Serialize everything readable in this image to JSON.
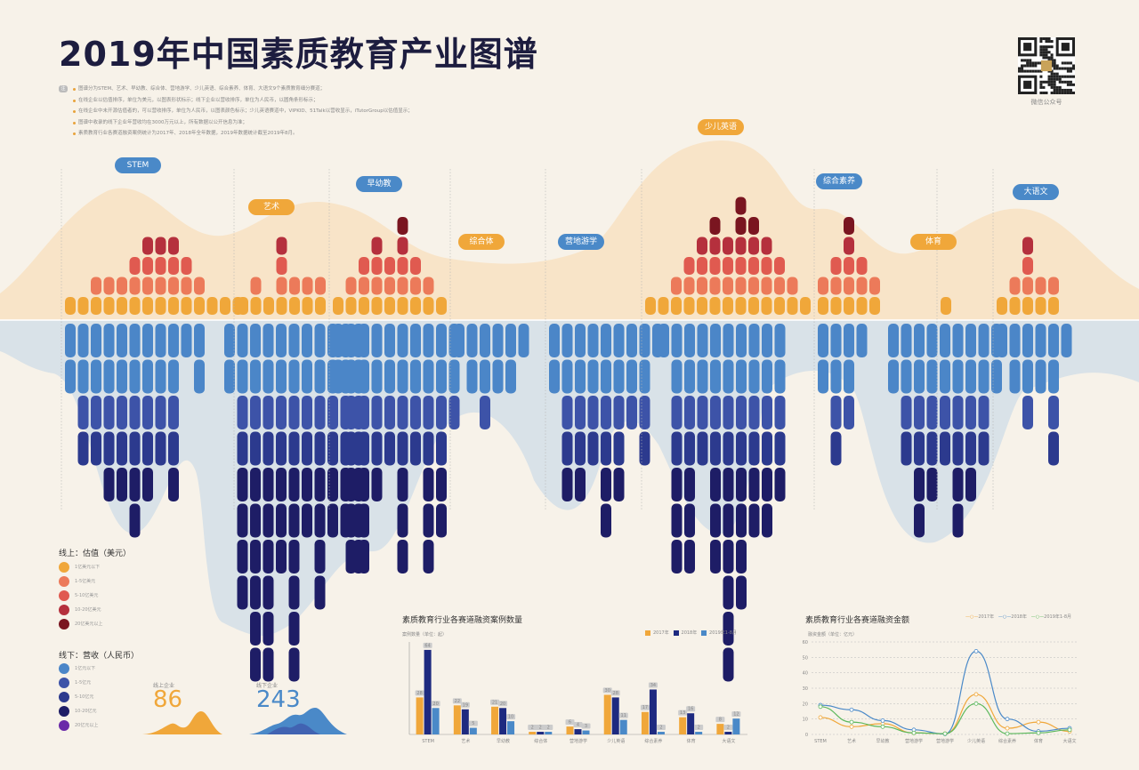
{
  "title": "2019年中国素质教育产业图谱",
  "qr_label": "微信公众号",
  "notes": {
    "badge": "注",
    "items": [
      "图谱分为STEM、艺术、早幼教、综合体、营地游学、少儿英语、综合素养、体育、大语文9个素质教育细分赛道；",
      "在线企业以估值排序，单位为美元，以图表形状标示；线下企业以营收排序，单位为人民币，以圆角条形标示；",
      "在线企业中未开源估值者的，可以营收排序，单位为人民币，以图表颜色标示；少儿英语赛道中，VIPKID、51Talk以营收显示，iTutorGroup以估值显示；",
      "图谱中收录的线下企业年营收均在3000万元以上，所有数据以公开信息为准；",
      "素质教育行业各赛道融资案例统计为2017年、2018年全年数据，2019年数据统计截至2019年8月。"
    ]
  },
  "colors": {
    "top_bg": "#f8e4c8",
    "bottom_bg": "#d9e2e8",
    "online": [
      "#f0a73a",
      "#ec7a5a",
      "#e05a50",
      "#b5303d",
      "#7a1520"
    ],
    "offline": [
      "#4b86c8",
      "#3d53a8",
      "#2c3a8e",
      "#1e1d66",
      "#6a2aa8"
    ],
    "label_bg": "#4a89c8",
    "title": "#1d1d3f",
    "online_stat": "#f0a73a",
    "offline_stat": "#4a89c8"
  },
  "categories": [
    {
      "name": "STEM",
      "label_x": 155,
      "label_y": 186,
      "online": [
        0,
        0,
        1,
        1,
        1,
        2,
        3,
        3,
        3,
        2,
        1,
        0,
        0,
        0
      ],
      "offline": [
        1,
        3,
        3,
        4,
        4,
        5,
        4,
        3,
        4,
        0,
        1
      ],
      "online_x0": 73,
      "offline_x0": 73
    },
    {
      "name": "艺术",
      "label_x": 305,
      "label_y": 233,
      "online": [
        0,
        1,
        0,
        3,
        1,
        1,
        1
      ],
      "offline": [
        1,
        7,
        9,
        9,
        6,
        9,
        5,
        7,
        5,
        5,
        6
      ],
      "online_x0": 267,
      "offline_x0": 252
    },
    {
      "name": "早幼教",
      "label_x": 426,
      "label_y": 207,
      "online": [
        0,
        1,
        2,
        3,
        2,
        4,
        2,
        1,
        0
      ],
      "offline": [
        1,
        6,
        6,
        4,
        3,
        6,
        3,
        6,
        5,
        2
      ],
      "online_x0": 374,
      "offline_x0": 374
    },
    {
      "name": "综合体",
      "label_x": 541,
      "label_y": 272,
      "online": [],
      "offline": [
        0,
        1,
        2,
        1,
        1,
        0
      ],
      "online_x0": 520,
      "offline_x0": 510
    },
    {
      "name": "营地游学",
      "label_x": 653,
      "label_y": 272,
      "online": [],
      "offline": [
        1,
        4,
        4,
        3,
        5,
        4,
        2,
        3,
        0
      ],
      "online_x0": 620,
      "offline_x0": 617
    },
    {
      "name": "少儿英语",
      "label_x": 810,
      "label_y": 143,
      "online": [
        0,
        0,
        1,
        2,
        3,
        4,
        3,
        5,
        4,
        3,
        2,
        1,
        0
      ],
      "offline": [
        0,
        6,
        6,
        3,
        6,
        9,
        7,
        5,
        5,
        4
      ],
      "online_x0": 725,
      "offline_x0": 740
    },
    {
      "name": "综合素养",
      "label_x": 943,
      "label_y": 204,
      "online": [
        1,
        2,
        4,
        2,
        1
      ],
      "offline": [
        1,
        3,
        2,
        0
      ],
      "online_x0": 919,
      "offline_x0": 919
    },
    {
      "name": "体育",
      "label_x": 1049,
      "label_y": 272,
      "online": [
        0
      ],
      "offline": [
        1,
        3,
        5,
        4,
        3,
        5,
        4,
        3,
        1
      ],
      "online_x0": 1057,
      "offline_x0": 998
    },
    {
      "name": "大语文",
      "label_x": 1164,
      "label_y": 216,
      "online": [
        0,
        1,
        3,
        1,
        1
      ],
      "offline": [
        0,
        1,
        2,
        1,
        3,
        0
      ],
      "online_x0": 1120,
      "offline_x0": 1120
    }
  ],
  "legend": {
    "online_title": "线上：估值（美元）",
    "online_items": [
      "1亿美元以下",
      "1-5亿美元",
      "5-10亿美元",
      "10-20亿美元",
      "20亿美元以上"
    ],
    "offline_title": "线下：营收（人民币）",
    "offline_items": [
      "1亿元以下",
      "1-5亿元",
      "5-10亿元",
      "10-20亿元",
      "20亿元以上"
    ]
  },
  "stats": {
    "online_label": "线上企业",
    "online_value": "86",
    "offline_label": "线下企业",
    "offline_value": "243"
  },
  "chart_data": [
    {
      "type": "bar",
      "title": "素质教育行业各赛道融资案例数量",
      "ylabel": "案例数量（单位：起）",
      "categories": [
        "STEM",
        "艺术",
        "早幼教",
        "综合体",
        "营地游学",
        "少儿英语",
        "综合素养",
        "体育",
        "大语文"
      ],
      "series": [
        {
          "name": "2017年",
          "values": [
            28,
            22,
            21,
            2,
            6,
            30,
            17,
            13,
            8
          ]
        },
        {
          "name": "2018年",
          "values": [
            64,
            19,
            20,
            2,
            4,
            28,
            34,
            16,
            2
          ]
        },
        {
          "name": "2019年1-8月",
          "values": [
            20,
            5,
            10,
            2,
            3,
            11,
            2,
            2,
            12
          ]
        }
      ],
      "ylim": [
        0,
        70
      ],
      "colors": [
        "#f0a73a",
        "#1e2a80",
        "#4a89c8"
      ]
    },
    {
      "type": "line",
      "title": "素质教育行业各赛道融资金额",
      "ylabel": "融资金额（单位：亿元）",
      "categories": [
        "STEM",
        "艺术",
        "早幼教",
        "营地游学",
        "营地游学",
        "少儿英语",
        "综合素养",
        "体育",
        "大语文"
      ],
      "series": [
        {
          "name": "2017年",
          "values": [
            11,
            5,
            7,
            1,
            0.5,
            26,
            4,
            8,
            2
          ]
        },
        {
          "name": "2018年",
          "values": [
            19,
            16,
            9,
            3,
            0.3,
            54,
            10,
            2,
            4
          ]
        },
        {
          "name": "2019年1-8月",
          "values": [
            18,
            8,
            5,
            1,
            0.5,
            20,
            0.5,
            1,
            3
          ]
        }
      ],
      "yticks": [
        0,
        10,
        20,
        30,
        40,
        50,
        60
      ],
      "ylim": [
        0,
        60
      ],
      "colors": [
        "#f0a73a",
        "#4a89c8",
        "#5cb85c"
      ]
    }
  ]
}
